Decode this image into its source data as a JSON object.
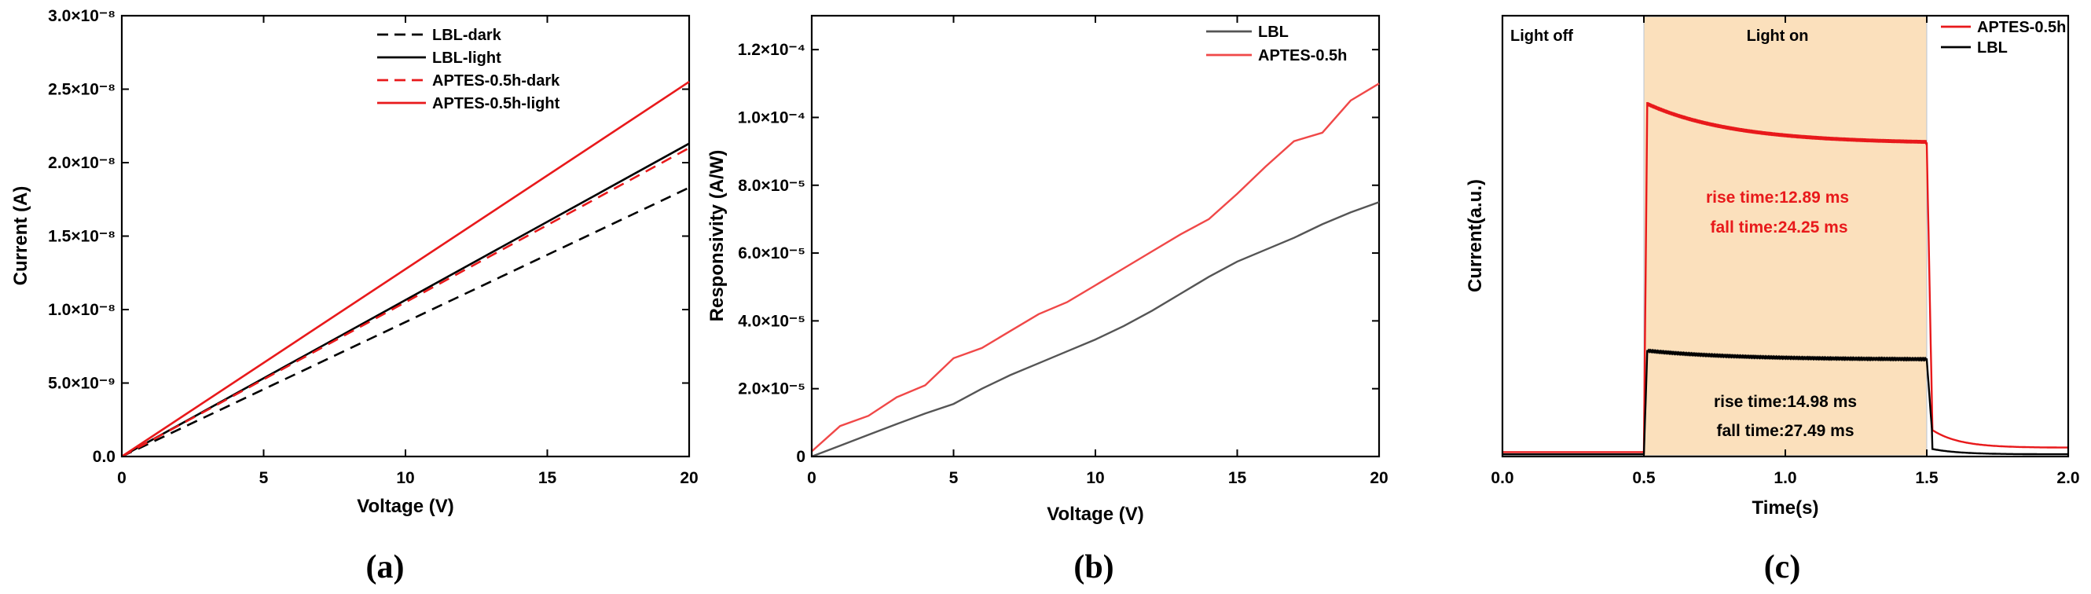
{
  "chart_data": [
    {
      "type": "line",
      "panel": "(a)",
      "xlabel": "Voltage (V)",
      "ylabel": "Current (A)",
      "xlim": [
        0,
        20
      ],
      "ylim": [
        0,
        3e-08
      ],
      "xticks": [
        0,
        5,
        10,
        15,
        20
      ],
      "xtick_labels": [
        "0",
        "5",
        "10",
        "15",
        "20"
      ],
      "yticks": [
        0,
        5e-09,
        1e-08,
        1.5e-08,
        2e-08,
        2.5e-08,
        3e-08
      ],
      "ytick_labels": [
        "0.0",
        "5.0×10⁻⁹",
        "1.0×10⁻⁸",
        "1.5×10⁻⁸",
        "2.0×10⁻⁸",
        "2.5×10⁻⁸",
        "3.0×10⁻⁸"
      ],
      "legend_position": "top-right",
      "series": [
        {
          "name": "LBL-dark",
          "color": "#000000",
          "dash": "dashed",
          "x": [
            0,
            20
          ],
          "y": [
            0,
            1.83e-08
          ]
        },
        {
          "name": "LBL-light",
          "color": "#000000",
          "dash": "solid",
          "x": [
            0,
            20
          ],
          "y": [
            0,
            2.13e-08
          ]
        },
        {
          "name": "APTES-0.5h-dark",
          "color": "#e8191b",
          "dash": "dashed",
          "x": [
            0,
            20
          ],
          "y": [
            0,
            2.1e-08
          ]
        },
        {
          "name": "APTES-0.5h-light",
          "color": "#e8191b",
          "dash": "solid",
          "x": [
            0,
            20
          ],
          "y": [
            0,
            2.55e-08
          ]
        }
      ]
    },
    {
      "type": "line",
      "panel": "(b)",
      "xlabel": "Voltage (V)",
      "ylabel": "Responsivity (A/W)",
      "xlim": [
        0,
        20
      ],
      "ylim": [
        0,
        0.00013
      ],
      "xticks": [
        0,
        5,
        10,
        15,
        20
      ],
      "xtick_labels": [
        "0",
        "5",
        "10",
        "15",
        "20"
      ],
      "yticks": [
        0,
        2e-05,
        4e-05,
        6e-05,
        8e-05,
        0.0001,
        0.00012
      ],
      "ytick_labels": [
        "0",
        "2.0×10⁻⁵",
        "4.0×10⁻⁵",
        "6.0×10⁻⁵",
        "8.0×10⁻⁵",
        "1.0×10⁻⁴",
        "1.2×10⁻⁴"
      ],
      "legend_position": "top-right",
      "series": [
        {
          "name": "LBL",
          "color": "#555555",
          "x": [
            0,
            1,
            2,
            3,
            4,
            5,
            6,
            7,
            8,
            9,
            10,
            11,
            12,
            13,
            14,
            15,
            16,
            17,
            18,
            19,
            20
          ],
          "y": [
            0,
            3.2e-06,
            6.4e-06,
            9.6e-06,
            1.27e-05,
            1.55e-05,
            2e-05,
            2.4e-05,
            2.75e-05,
            3.1e-05,
            3.45e-05,
            3.85e-05,
            4.3e-05,
            4.8e-05,
            5.3e-05,
            5.75e-05,
            6.1e-05,
            6.45e-05,
            6.85e-05,
            7.2e-05,
            7.5e-05
          ]
        },
        {
          "name": "APTES-0.5h",
          "color": "#f04848",
          "x": [
            0,
            1,
            2,
            3,
            4,
            5,
            6,
            7,
            8,
            9,
            10,
            11,
            12,
            13,
            14,
            15,
            16,
            17,
            18,
            19,
            20
          ],
          "y": [
            1.5e-06,
            9e-06,
            1.2e-05,
            1.75e-05,
            2.1e-05,
            2.9e-05,
            3.2e-05,
            3.7e-05,
            4.2e-05,
            4.55e-05,
            5.05e-05,
            5.55e-05,
            6.05e-05,
            6.55e-05,
            7e-05,
            7.75e-05,
            8.55e-05,
            9.3e-05,
            9.55e-05,
            0.000105,
            0.00011
          ]
        }
      ]
    },
    {
      "type": "line",
      "panel": "(c)",
      "xlabel": "Time(s)",
      "ylabel": "Current(a.u.)",
      "xlim": [
        0,
        2.0
      ],
      "ylim": [
        0,
        1
      ],
      "xticks": [
        0,
        0.5,
        1.0,
        1.5,
        2.0
      ],
      "xtick_labels": [
        "0.0",
        "0.5",
        "1.0",
        "1.5",
        "2.0"
      ],
      "shaded_region": {
        "x": [
          0.5,
          1.5
        ],
        "color": "#fbe0bc"
      },
      "region_labels": [
        "Light off",
        "Light on"
      ],
      "legend_position": "top-right",
      "annotations": [
        {
          "text": "rise time:12.89 ms",
          "color": "#e8191b"
        },
        {
          "text": "fall time:24.25 ms",
          "color": "#e8191b"
        },
        {
          "text": "rise time:14.98 ms",
          "color": "#000000"
        },
        {
          "text": "fall time:27.49 ms",
          "color": "#000000"
        }
      ],
      "series": [
        {
          "name": "APTES-0.5h",
          "color": "#e8191b",
          "baseline": 0.01,
          "on_start": 0.5,
          "off_start": 1.5,
          "peak": 0.8,
          "plateau_end": 0.71,
          "tail_2s": 0.02
        },
        {
          "name": "LBL",
          "color": "#000000",
          "baseline": 0.005,
          "on_start": 0.5,
          "off_start": 1.5,
          "peak": 0.24,
          "plateau_end": 0.22,
          "tail_2s": 0.005
        }
      ]
    }
  ]
}
